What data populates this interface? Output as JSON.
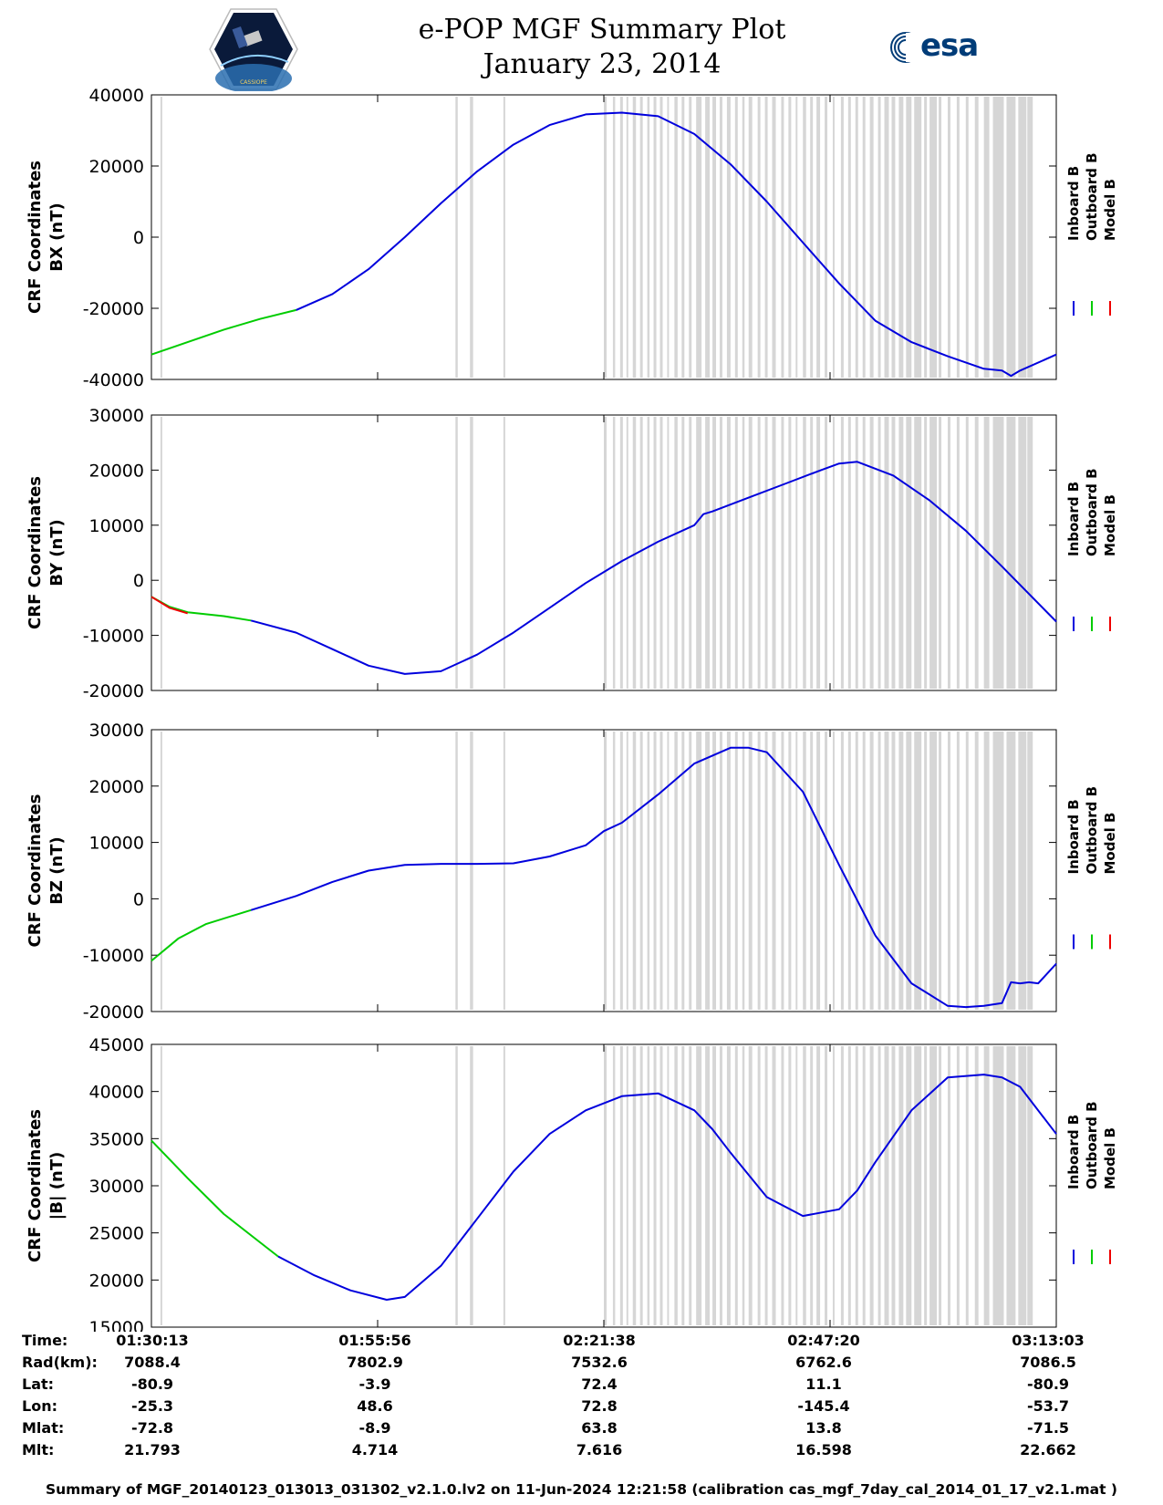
{
  "title": "e-POP MGF Summary Plot",
  "subtitle": "January 23, 2014",
  "logo_left_text": "CASSIOPE",
  "logo_right_text": "esa",
  "colors": {
    "inboard": "#0000dd",
    "outboard": "#00cc00",
    "model": "#ee0000",
    "gap": "#d6d6d6"
  },
  "legend": [
    "Inboard B",
    "Outboard B",
    "Model B"
  ],
  "time_range": [
    0,
    100
  ],
  "chart_data": [
    {
      "type": "line",
      "ylabel_line1": "CRF Coordinates",
      "ylabel_line2": "BX (nT)",
      "ylim": [
        -40000,
        40000
      ],
      "yticks": [
        40000,
        20000,
        0,
        -20000,
        -40000
      ],
      "series": [
        {
          "name": "Outboard B",
          "x": [
            0,
            4,
            8,
            12,
            16
          ],
          "values": [
            -33000,
            -29500,
            -26000,
            -23000,
            -20500
          ]
        },
        {
          "name": "Inboard B",
          "x": [
            16,
            20,
            24,
            28,
            32,
            36,
            40,
            44,
            48,
            52,
            56,
            60,
            64,
            68,
            72,
            76,
            80,
            84,
            88,
            92,
            94,
            95,
            96,
            100
          ],
          "values": [
            -20500,
            -16000,
            -9000,
            0,
            9500,
            18500,
            26000,
            31500,
            34500,
            35000,
            34000,
            29000,
            20500,
            10000,
            -1500,
            -13000,
            -23500,
            -29500,
            -33500,
            -37000,
            -37500,
            -39000,
            -37500,
            -33000
          ]
        }
      ]
    },
    {
      "type": "line",
      "ylabel_line1": "CRF Coordinates",
      "ylabel_line2": "BY (nT)",
      "ylim": [
        -20000,
        30000
      ],
      "yticks": [
        30000,
        20000,
        10000,
        0,
        -10000,
        -20000
      ],
      "series": [
        {
          "name": "Outboard B",
          "x": [
            0,
            2,
            4,
            8,
            11
          ],
          "values": [
            -3000,
            -4800,
            -5800,
            -6500,
            -7300
          ]
        },
        {
          "name": "Model B",
          "x": [
            0,
            2,
            4
          ],
          "values": [
            -3000,
            -5000,
            -6000
          ]
        },
        {
          "name": "Inboard B",
          "x": [
            11,
            16,
            20,
            24,
            28,
            32,
            36,
            40,
            44,
            48,
            52,
            56,
            60,
            61,
            62,
            66,
            70,
            74,
            76,
            78,
            82,
            86,
            90,
            94,
            100
          ],
          "values": [
            -7300,
            -9500,
            -12500,
            -15500,
            -17000,
            -16500,
            -13500,
            -9500,
            -5000,
            -500,
            3500,
            7000,
            10000,
            12000,
            12500,
            15000,
            17500,
            20000,
            21200,
            21500,
            19000,
            14500,
            9000,
            2500,
            -7500
          ]
        }
      ]
    },
    {
      "type": "line",
      "ylabel_line1": "CRF Coordinates",
      "ylabel_line2": "BZ (nT)",
      "ylim": [
        -20000,
        30000
      ],
      "yticks": [
        30000,
        20000,
        10000,
        0,
        -10000,
        -20000
      ],
      "series": [
        {
          "name": "Outboard B",
          "x": [
            0,
            3,
            6,
            9,
            11
          ],
          "values": [
            -11000,
            -7000,
            -4500,
            -3000,
            -2000
          ]
        },
        {
          "name": "Inboard B",
          "x": [
            11,
            16,
            20,
            24,
            28,
            32,
            36,
            40,
            44,
            48,
            50,
            52,
            56,
            60,
            64,
            66,
            68,
            72,
            76,
            80,
            84,
            88,
            90,
            92,
            94,
            95,
            96,
            97,
            98,
            100
          ],
          "values": [
            -2000,
            500,
            3000,
            5000,
            6000,
            6200,
            6200,
            6300,
            7500,
            9500,
            12000,
            13500,
            18500,
            24000,
            26800,
            26800,
            26000,
            19000,
            6000,
            -6500,
            -15000,
            -19000,
            -19200,
            -19000,
            -18500,
            -14800,
            -15000,
            -14800,
            -15000,
            -11500
          ]
        }
      ]
    },
    {
      "type": "line",
      "ylabel_line1": "CRF Coordinates",
      "ylabel_line2": "|B| (nT)",
      "ylim": [
        15000,
        45000
      ],
      "yticks": [
        45000,
        40000,
        35000,
        30000,
        25000,
        20000,
        15000
      ],
      "series": [
        {
          "name": "Outboard B",
          "x": [
            0,
            4,
            8,
            12,
            14
          ],
          "values": [
            34800,
            30800,
            27000,
            24000,
            22500
          ]
        },
        {
          "name": "Inboard B",
          "x": [
            14,
            18,
            22,
            26,
            28,
            32,
            36,
            40,
            44,
            48,
            52,
            56,
            60,
            62,
            64,
            68,
            72,
            76,
            78,
            80,
            84,
            88,
            92,
            94,
            96,
            100
          ],
          "values": [
            22500,
            20500,
            18900,
            17900,
            18200,
            21500,
            26500,
            31500,
            35500,
            38000,
            39500,
            39800,
            38000,
            36000,
            33500,
            28800,
            26800,
            27500,
            29500,
            32500,
            38000,
            41500,
            41800,
            41500,
            40500,
            35500
          ]
        }
      ]
    }
  ],
  "ephemeris": {
    "labels": [
      "Time:",
      "Rad(km):",
      "Lat:",
      "Lon:",
      "Mlat:",
      "Mlt:"
    ],
    "columns": [
      [
        "01:30:13",
        "7088.4",
        "-80.9",
        "-25.3",
        "-72.8",
        "21.793"
      ],
      [
        "01:55:56",
        "7802.9",
        "-3.9",
        "48.6",
        "-8.9",
        "4.714"
      ],
      [
        "02:21:38",
        "7532.6",
        "72.4",
        "72.8",
        "63.8",
        "7.616"
      ],
      [
        "02:47:20",
        "6762.6",
        "11.1",
        "-145.4",
        "13.8",
        "16.598"
      ],
      [
        "03:13:03",
        "7086.5",
        "-80.9",
        "-53.7",
        "-71.5",
        "22.662"
      ]
    ]
  },
  "footer": "Summary of MGF_20140123_013013_031302_v2.1.0.lv2 on 11-Jun-2024 12:21:58 (calibration cas_mgf_7day_cal_2014_01_17_v2.1.mat )"
}
